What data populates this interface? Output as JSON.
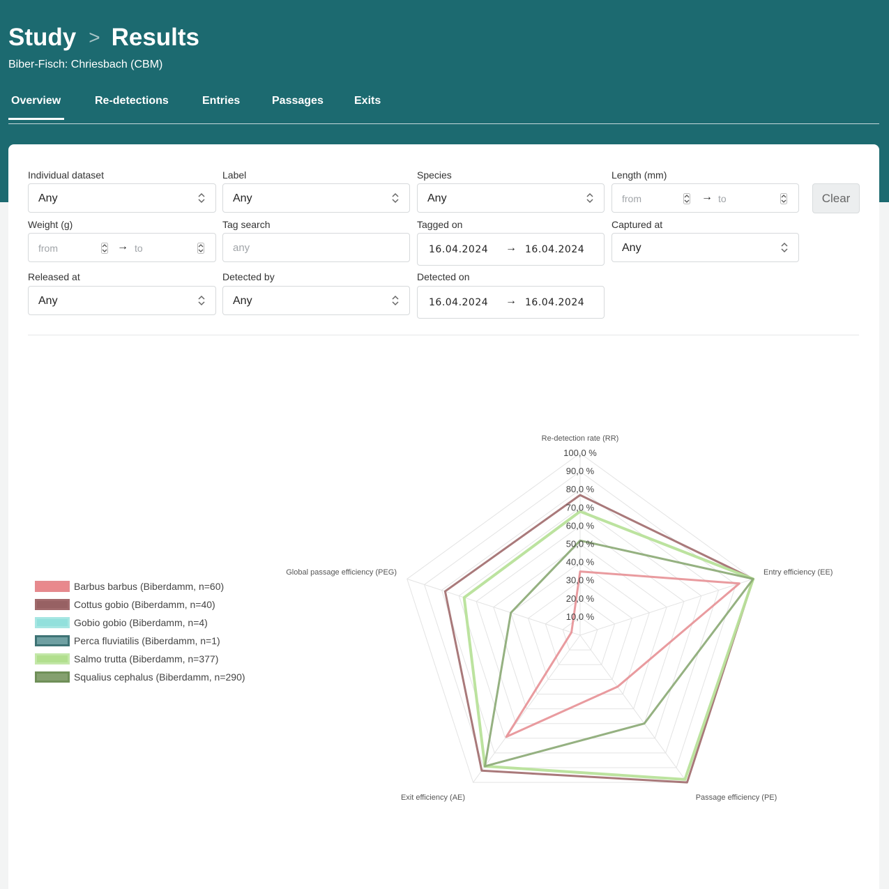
{
  "breadcrumb": {
    "study": "Study",
    "sep": ">",
    "results": "Results"
  },
  "subtitle": "Biber-Fisch: Chriesbach (CBM)",
  "tabs": [
    {
      "label": "Overview",
      "active": true
    },
    {
      "label": "Re-detections"
    },
    {
      "label": "Entries"
    },
    {
      "label": "Passages"
    },
    {
      "label": "Exits"
    }
  ],
  "filters": {
    "individual_dataset": {
      "label": "Individual dataset",
      "value": "Any"
    },
    "label": {
      "label": "Label",
      "value": "Any"
    },
    "species": {
      "label": "Species",
      "value": "Any"
    },
    "length": {
      "label": "Length (mm)",
      "from_placeholder": "from",
      "to_placeholder": "to"
    },
    "clear": "Clear",
    "weight": {
      "label": "Weight (g)",
      "from_placeholder": "from",
      "to_placeholder": "to"
    },
    "tag_search": {
      "label": "Tag search",
      "placeholder": "any"
    },
    "tagged_on": {
      "label": "Tagged on",
      "from": "16.04.2024",
      "to": "16.04.2024"
    },
    "captured_at": {
      "label": "Captured at",
      "value": "Any"
    },
    "released_at": {
      "label": "Released at",
      "value": "Any"
    },
    "detected_by": {
      "label": "Detected by",
      "value": "Any"
    },
    "detected_on": {
      "label": "Detected on",
      "from": "16.04.2024",
      "to": "16.04.2024"
    },
    "arrow": "→"
  },
  "chart_data": {
    "type": "radar",
    "axes": [
      "Re-detection rate (RR)",
      "Entry efficiency (EE)",
      "Passage efficiency (PE)",
      "Exit efficiency (AE)",
      "Global passage efficiency (PEG)"
    ],
    "ticks": [
      "10,0 %",
      "20,0 %",
      "30,0 %",
      "40,0 %",
      "50,0 %",
      "60,0 %",
      "70,0 %",
      "80,0 %",
      "90,0 %",
      "100,0 %"
    ],
    "range": [
      0,
      100
    ],
    "series": [
      {
        "name": "Barbus barbus (Biberdamm, n=60)",
        "color": "#e58a8e",
        "values": [
          35,
          92,
          35,
          69,
          5
        ]
      },
      {
        "name": "Cottus gobio (Biberdamm, n=40)",
        "color": "#a06a6c",
        "values": [
          77,
          100,
          100,
          92,
          78
        ]
      },
      {
        "name": "Gobio gobio (Biberdamm, n=4)",
        "color": "#7fdad6",
        "values": []
      },
      {
        "name": "Perca fluviatilis (Biberdamm, n=1)",
        "color": "#5f9698",
        "values": []
      },
      {
        "name": "Salmo trutta (Biberdamm, n=377)",
        "color": "#b8e29a",
        "values": [
          68,
          100,
          98,
          89,
          67
        ]
      },
      {
        "name": "Squalius cephalus (Biberdamm, n=290)",
        "color": "#8aa873",
        "values": [
          52,
          100,
          60,
          89,
          40
        ]
      }
    ]
  }
}
